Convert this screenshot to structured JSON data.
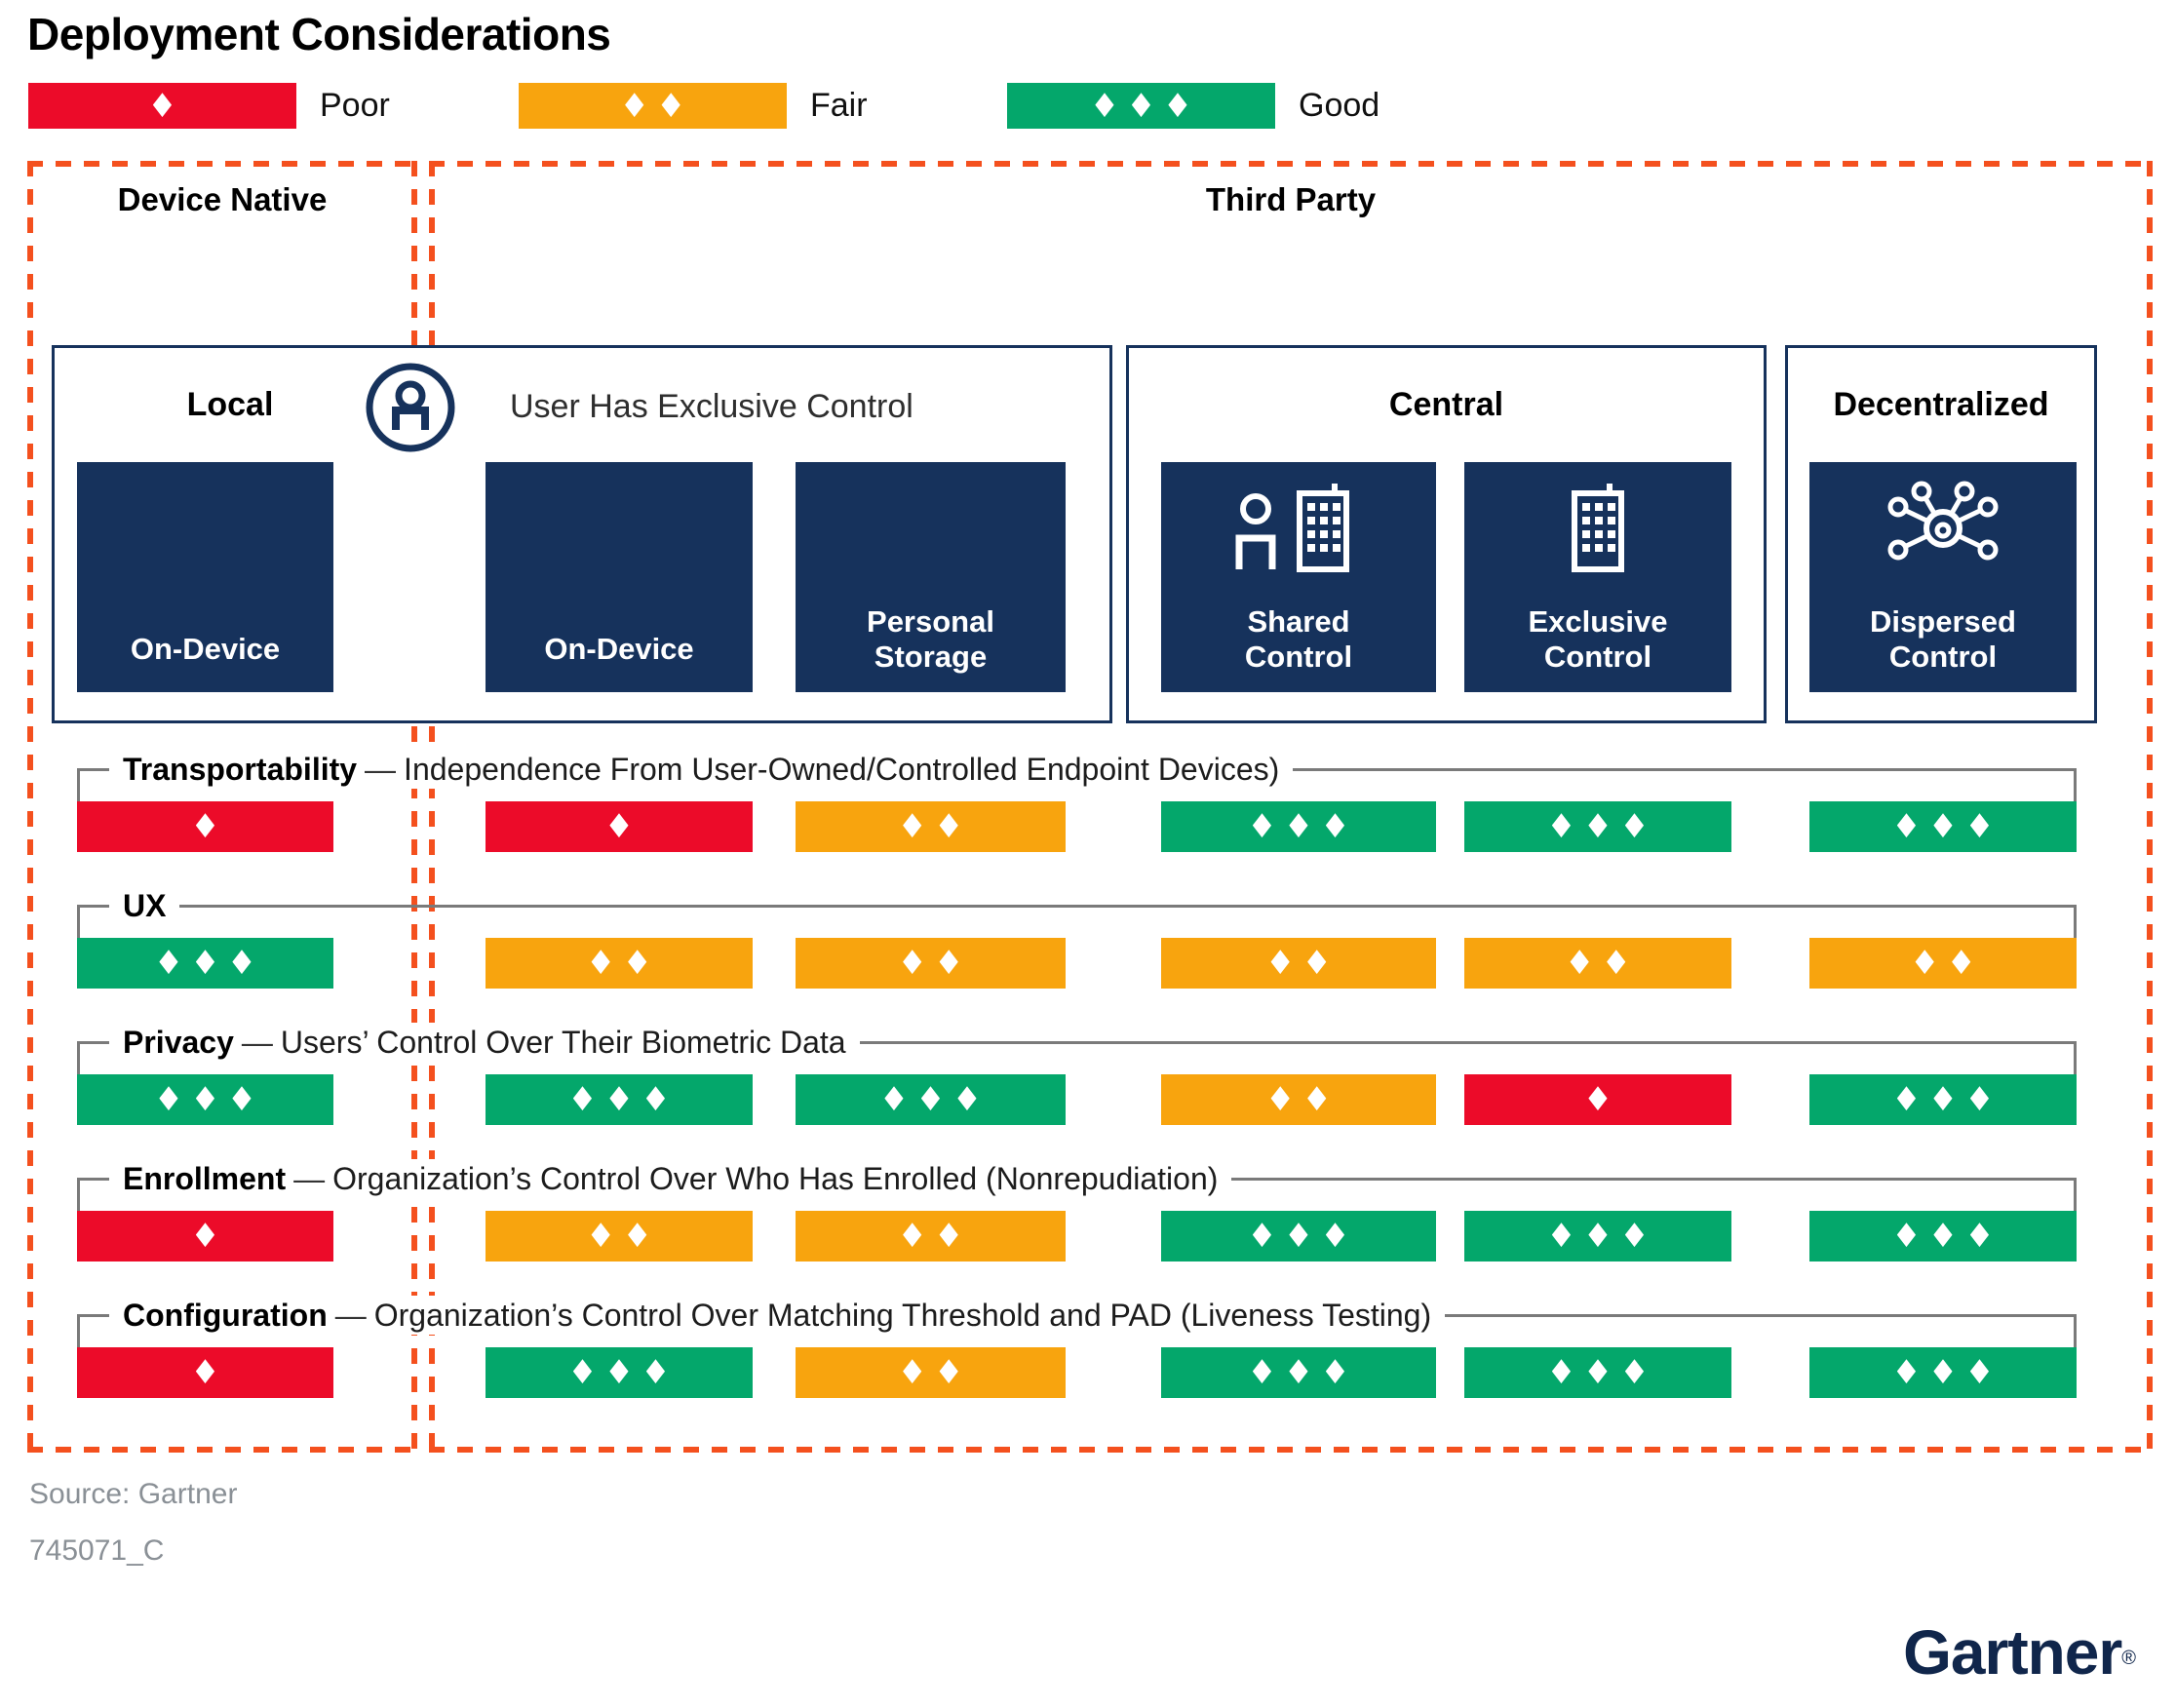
{
  "title": "Deployment Considerations",
  "diamond_glyph": "♦",
  "separator": "—",
  "colors": {
    "poor": "#EC0B29",
    "fair": "#F8A40E",
    "good": "#04A76B",
    "navy": "#16325C",
    "dash_border": "#F4501E",
    "rule_gray": "#7A7A7A",
    "source_gray": "#8A9096",
    "logo_navy": "#10264B"
  },
  "legend": {
    "items": [
      {
        "label": "Poor",
        "level": 1
      },
      {
        "label": "Fair",
        "level": 2
      },
      {
        "label": "Good",
        "level": 3
      }
    ]
  },
  "groups": {
    "device_native": "Device Native",
    "third_party": "Third Party"
  },
  "boxes": {
    "local": {
      "header": "Local",
      "tile": "On-Device"
    },
    "user_exclusive": {
      "header": "User Has Exclusive Control",
      "icon": "user-circle-icon",
      "tiles": [
        "On-Device",
        "Personal Storage"
      ]
    },
    "central": {
      "header": "Central",
      "tiles": [
        "Shared Control",
        "Exclusive Control"
      ]
    },
    "decentralized": {
      "header": "Decentralized",
      "tiles": [
        "Dispersed Control"
      ]
    }
  },
  "icons": {
    "user": "user-circle-icon",
    "shared_control": "person-and-building-icon",
    "exclusive_control": "building-icon",
    "dispersed_control": "dispersed-network-icon"
  },
  "rows": [
    {
      "name": "Transportability",
      "description": "Independence From User-Owned/Controlled Endpoint Devices)",
      "ratings": [
        1,
        1,
        2,
        3,
        3,
        3
      ]
    },
    {
      "name": "UX",
      "description": "",
      "ratings": [
        3,
        2,
        2,
        2,
        2,
        2
      ]
    },
    {
      "name": "Privacy",
      "description": "Users’ Control Over Their Biometric Data",
      "ratings": [
        3,
        3,
        3,
        2,
        1,
        3
      ]
    },
    {
      "name": "Enrollment",
      "description": "Organization’s Control Over Who Has Enrolled (Nonrepudiation)",
      "ratings": [
        1,
        2,
        2,
        3,
        3,
        3
      ]
    },
    {
      "name": "Configuration",
      "description": "Organization’s Control Over Matching Threshold and PAD (Liveness Testing)",
      "ratings": [
        1,
        3,
        2,
        3,
        3,
        3
      ]
    }
  ],
  "footer": {
    "source": "Source: Gartner",
    "artifact_id": "745071_C",
    "logo": "Gartner",
    "registered": "®"
  },
  "chart_data": {
    "type": "table",
    "title": "Deployment Considerations",
    "rating_scale": {
      "Poor": 1,
      "Fair": 2,
      "Good": 3
    },
    "columns": [
      {
        "group": "Device Native",
        "section": "Local",
        "deployment": "On-Device"
      },
      {
        "group": "Third Party",
        "section": "User Has Exclusive Control",
        "deployment": "On-Device"
      },
      {
        "group": "Third Party",
        "section": "User Has Exclusive Control",
        "deployment": "Personal Storage"
      },
      {
        "group": "Third Party",
        "section": "Central",
        "deployment": "Shared Control"
      },
      {
        "group": "Third Party",
        "section": "Central",
        "deployment": "Exclusive Control"
      },
      {
        "group": "Third Party",
        "section": "Decentralized",
        "deployment": "Dispersed Control"
      }
    ],
    "rows": [
      {
        "criterion": "Transportability",
        "ratings": [
          "Poor",
          "Poor",
          "Fair",
          "Good",
          "Good",
          "Good"
        ]
      },
      {
        "criterion": "UX",
        "ratings": [
          "Good",
          "Fair",
          "Fair",
          "Fair",
          "Fair",
          "Fair"
        ]
      },
      {
        "criterion": "Privacy",
        "ratings": [
          "Good",
          "Good",
          "Good",
          "Fair",
          "Poor",
          "Good"
        ]
      },
      {
        "criterion": "Enrollment",
        "ratings": [
          "Poor",
          "Fair",
          "Fair",
          "Good",
          "Good",
          "Good"
        ]
      },
      {
        "criterion": "Configuration",
        "ratings": [
          "Poor",
          "Good",
          "Fair",
          "Good",
          "Good",
          "Good"
        ]
      }
    ]
  }
}
